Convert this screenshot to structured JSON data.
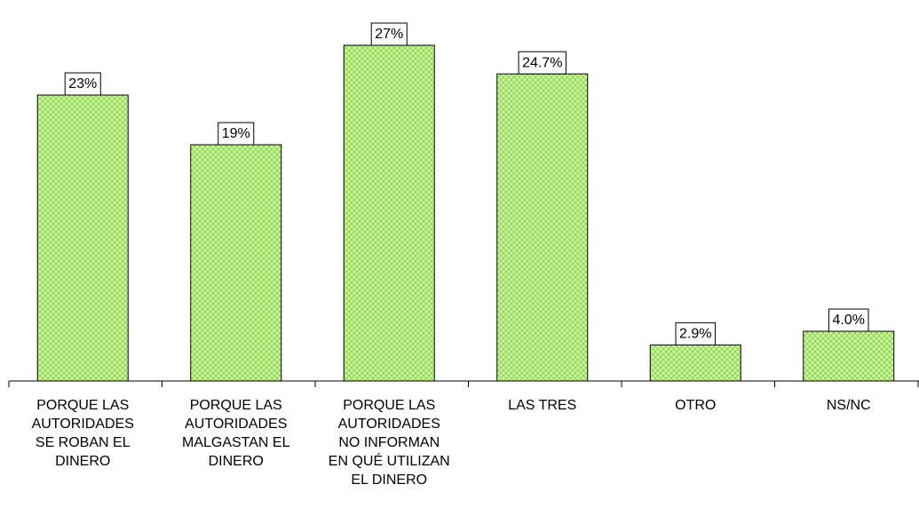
{
  "chart_data": {
    "type": "bar",
    "categories": [
      "PORQUE LAS AUTORIDADES SE ROBAN EL DINERO",
      "PORQUE LAS AUTORIDADES MALGASTAN EL DINERO",
      "PORQUE LAS AUTORIDADES NO INFORMAN EN QUÉ UTILIZAN EL DINERO",
      "LAS TRES",
      "OTRO",
      "NS/NC"
    ],
    "values": [
      23,
      19,
      27,
      24.7,
      2.9,
      4.0
    ],
    "value_labels": [
      "23%",
      "19%",
      "27%",
      "24.7%",
      "2.9%",
      "4.0%"
    ],
    "color": "#ccff99"
  }
}
